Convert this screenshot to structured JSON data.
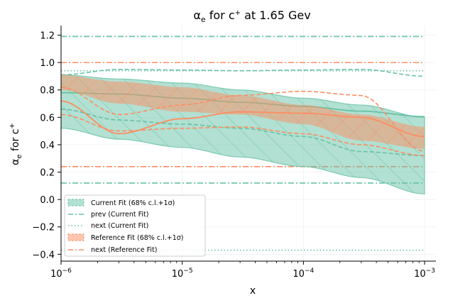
{
  "chart_data": {
    "type": "line",
    "title": "αe for c+ at 1.65 Gev",
    "title_parts": {
      "alpha": "α",
      "alpha_sub": "e",
      "for_c": " for c",
      "sup": "+",
      "rest": " at 1.65 Gev"
    },
    "xlabel": "x",
    "ylabel": "αe for c+",
    "ylabel_parts": {
      "alpha": "α",
      "sub": "e",
      "mid": " for c",
      "sup": "+"
    },
    "x_scale": "log",
    "xlim": [
      1e-06,
      0.001
    ],
    "ylim": [
      -0.45,
      1.27
    ],
    "x_ticks": [
      {
        "value": 1e-06,
        "base": "10",
        "exp": "−6"
      },
      {
        "value": 1e-05,
        "base": "10",
        "exp": "−5"
      },
      {
        "value": 0.0001,
        "base": "10",
        "exp": "−4"
      },
      {
        "value": 0.001,
        "base": "10",
        "exp": "−3"
      }
    ],
    "y_ticks": [
      {
        "value": -0.4,
        "label": "−0.4"
      },
      {
        "value": -0.2,
        "label": "−0.2"
      },
      {
        "value": 0.0,
        "label": "0.0"
      },
      {
        "value": 0.2,
        "label": "0.2"
      },
      {
        "value": 0.4,
        "label": "0.4"
      },
      {
        "value": 0.6,
        "label": "0.6"
      },
      {
        "value": 0.8,
        "label": "0.8"
      },
      {
        "value": 1.0,
        "label": "1.0"
      },
      {
        "value": 1.2,
        "label": "1.2"
      }
    ],
    "grid": true,
    "legend_position": "lower-left",
    "colors": {
      "current": "#66c2a5",
      "reference": "#fc8d62"
    },
    "current_fit": {
      "name": "Current Fit (68% c.l.+1σ)",
      "x": [
        1e-06,
        3e-06,
        1e-05,
        3e-05,
        0.0001,
        0.0003,
        0.001
      ],
      "central": [
        0.78,
        0.77,
        0.74,
        0.71,
        0.68,
        0.645,
        0.605
      ],
      "upper": [
        0.91,
        0.88,
        0.85,
        0.8,
        0.74,
        0.69,
        0.6
      ],
      "lower": [
        0.52,
        0.44,
        0.38,
        0.31,
        0.24,
        0.16,
        0.04
      ],
      "dashed_upper": [
        0.91,
        0.95,
        0.945,
        0.94,
        0.945,
        0.95,
        0.9
      ],
      "dashed_lower": [
        0.66,
        0.58,
        0.55,
        0.52,
        0.46,
        0.35,
        0.32
      ]
    },
    "prev_current_fit": {
      "name": "prev (Current Fit)",
      "values": [
        1.19,
        0.12
      ]
    },
    "next_current_fit": {
      "name": "next (Current Fit)",
      "values": [
        0.94,
        -0.37
      ]
    },
    "reference_fit": {
      "name": "Reference Fit (68% c.l.+1σ)",
      "x": [
        1e-06,
        3e-06,
        1e-05,
        3e-05,
        0.0001,
        0.0003,
        0.001
      ],
      "upper": [
        0.91,
        0.86,
        0.82,
        0.76,
        0.69,
        0.62,
        0.53
      ],
      "lower": [
        0.8,
        0.7,
        0.64,
        0.62,
        0.55,
        0.43,
        0.37
      ],
      "central": [
        0.72,
        0.48,
        0.59,
        0.64,
        0.63,
        0.6,
        0.46
      ],
      "dashed_upper": [
        0.82,
        0.62,
        0.69,
        0.76,
        0.79,
        0.76,
        0.35
      ],
      "dashed_lower": [
        0.62,
        0.5,
        0.52,
        0.53,
        0.48,
        0.4,
        0.32
      ]
    },
    "next_reference_fit": {
      "name": "next (Reference Fit)",
      "values": [
        1.0,
        0.24
      ]
    }
  }
}
